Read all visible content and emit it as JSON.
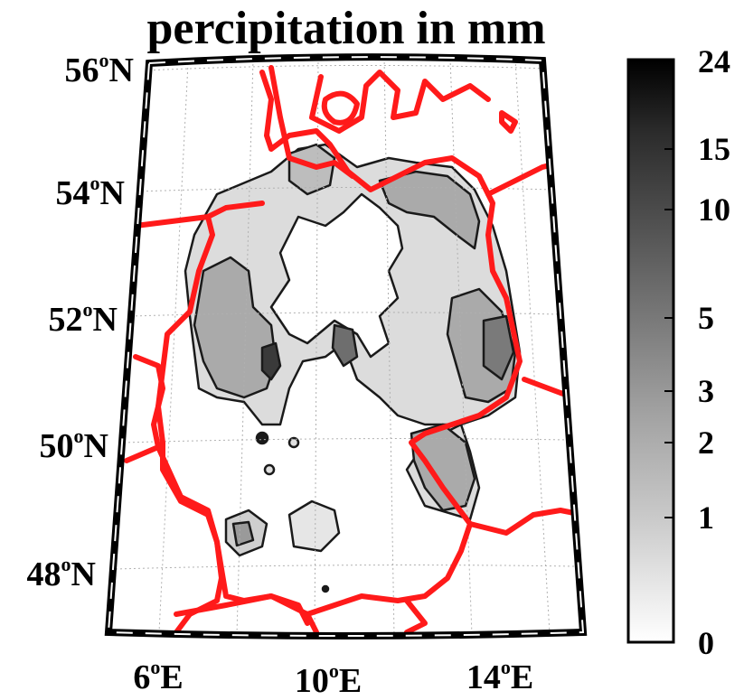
{
  "title": "percipitation in mm",
  "latitude_labels": [
    {
      "deg": "56",
      "sup": "o",
      "hem": "N"
    },
    {
      "deg": "54",
      "sup": "o",
      "hem": "N"
    },
    {
      "deg": "52",
      "sup": "o",
      "hem": "N"
    },
    {
      "deg": "50",
      "sup": "o",
      "hem": "N"
    },
    {
      "deg": "48",
      "sup": "o",
      "hem": "N"
    }
  ],
  "longitude_labels": [
    {
      "deg": "6",
      "sup": "o",
      "hem": "E"
    },
    {
      "deg": "10",
      "sup": "o",
      "hem": "E"
    },
    {
      "deg": "14",
      "sup": "o",
      "hem": "E"
    }
  ],
  "colorbar": {
    "ticks": [
      "24",
      "15",
      "10",
      "5",
      "3",
      "2",
      "1",
      "0"
    ],
    "colormap": "gray reversed (white to black)"
  },
  "colors": {
    "border_lines": "#ff1a1a",
    "frame": "#000000",
    "grid": "#b0b0b0",
    "low_fill": "#d9d9d9",
    "mid_fill": "#a8a8a8",
    "high_fill": "#6e6e6e",
    "max_fill": "#1a1a1a"
  }
}
